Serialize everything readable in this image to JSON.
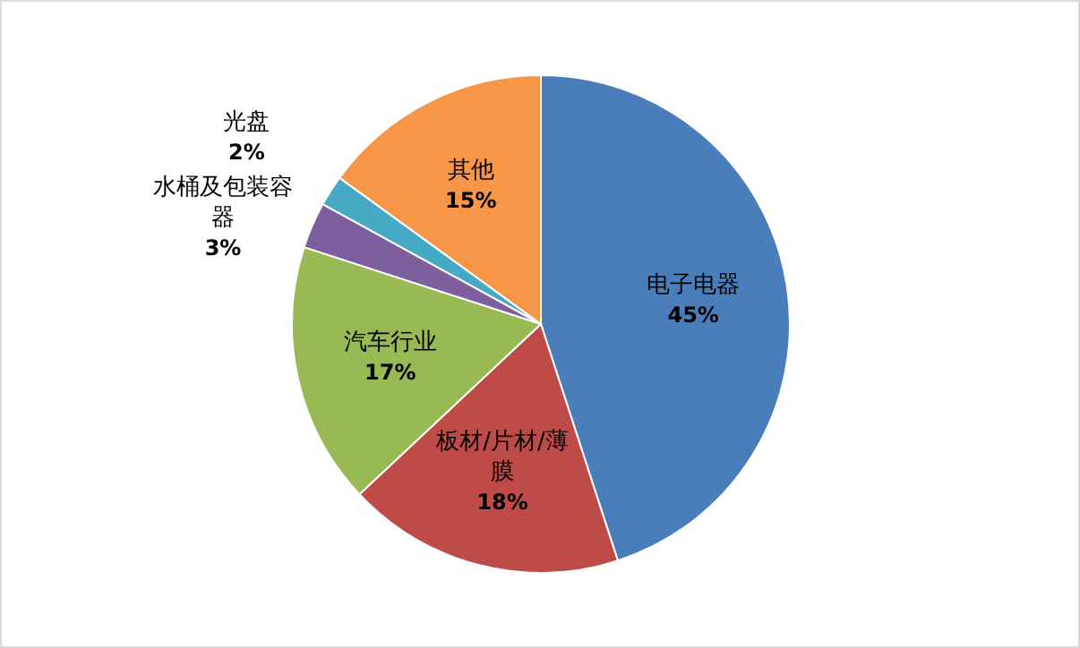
{
  "chart_data": {
    "type": "pie",
    "categories": [
      "电子电器",
      "板材/片材/薄膜",
      "汽车行业",
      "水桶及包装容器",
      "光盘",
      "其他"
    ],
    "values": [
      45,
      18,
      17,
      3,
      2,
      15
    ],
    "colors": [
      "#4a7ebb",
      "#be4b48",
      "#98b954",
      "#7d5fa0",
      "#46aac5",
      "#f79646"
    ],
    "value_labels": [
      "45%",
      "18%",
      "17%",
      "3%",
      "2%",
      "15%"
    ]
  }
}
